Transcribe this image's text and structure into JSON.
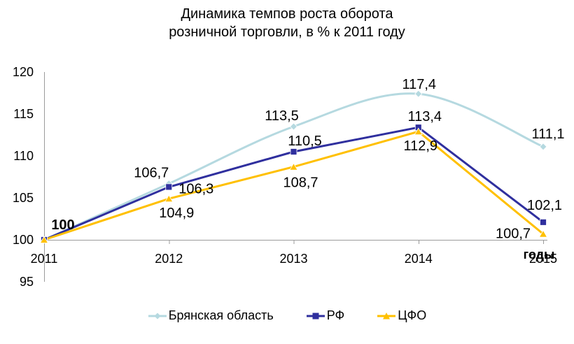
{
  "title": {
    "line1": "Динамика темпов роста оборота",
    "line2": "розничной торговли, в % к 2011 году"
  },
  "axes": {
    "y_ticks": [
      "120",
      "115",
      "110",
      "105",
      "100",
      "95"
    ],
    "x_ticks": [
      "2011",
      "2012",
      "2013",
      "2014",
      "2015"
    ],
    "x_axis_title": "годы"
  },
  "chart_data": {
    "type": "line",
    "title": "Динамика темпов роста оборота розничной торговли, в % к 2011 году",
    "categories": [
      "2011",
      "2012",
      "2013",
      "2014",
      "2015"
    ],
    "xlabel": "годы",
    "ylabel": "",
    "ylim": [
      95,
      120
    ],
    "y_tick_step": 5,
    "grid": false,
    "legend_position": "bottom",
    "series": [
      {
        "name": "Брянская область",
        "marker": "diamond",
        "color": "#B5D9E0",
        "smooth": true,
        "values": [
          100,
          106.7,
          113.5,
          117.4,
          111.1
        ],
        "labels": [
          "100",
          "106,7",
          "113,5",
          "117,4",
          "111,1"
        ]
      },
      {
        "name": "РФ",
        "marker": "square",
        "color": "#2F2F9E",
        "smooth": false,
        "values": [
          100,
          106.3,
          110.5,
          113.4,
          102.1
        ],
        "labels": [
          "",
          "106,3",
          "110,5",
          "113,4",
          "102,1"
        ]
      },
      {
        "name": "ЦФО",
        "marker": "triangle",
        "color": "#FFC000",
        "smooth": false,
        "values": [
          100,
          104.9,
          108.7,
          112.9,
          100.7
        ],
        "labels": [
          "",
          "104,9",
          "108,7",
          "112,9",
          "100,7"
        ]
      }
    ]
  },
  "colors": {
    "background": "#FFFFFF",
    "axis_line": "#9B9B9B",
    "text": "#000000"
  }
}
